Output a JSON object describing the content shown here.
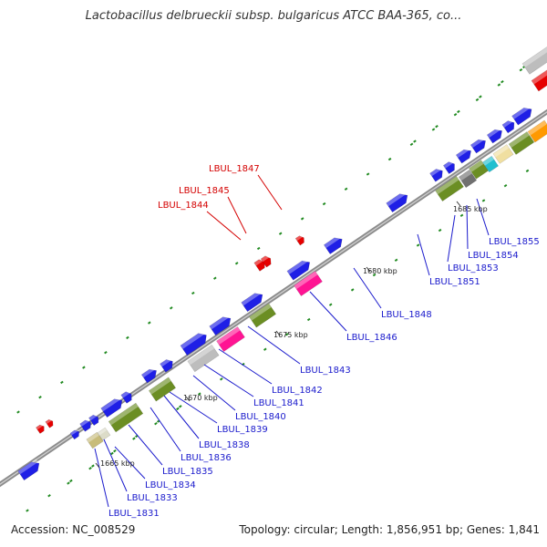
{
  "title": "Lactobacillus delbrueckii subsp. bulgaricus ATCC BAA-365, co...",
  "footer": {
    "accession": "Accession: NC_008529",
    "summary": "Topology: circular; Length: 1,856,951 bp; Genes: 1,841"
  },
  "colors": {
    "backbone": "#8c8c8c",
    "cds": "#1f1fe6",
    "trna": "#e60000",
    "label_blue": "#1a1acc",
    "label_red": "#d40000",
    "dotted": "#228b22"
  },
  "tick_labels": [
    "1665 kbp",
    "1670 kbp",
    "1675 kbp",
    "1680 kbp",
    "1685 kbp"
  ],
  "gene_labels": [
    {
      "name": "LBUL_1831",
      "color": "blue"
    },
    {
      "name": "LBUL_1833",
      "color": "blue"
    },
    {
      "name": "LBUL_1834",
      "color": "blue"
    },
    {
      "name": "LBUL_1835",
      "color": "blue"
    },
    {
      "name": "LBUL_1836",
      "color": "blue"
    },
    {
      "name": "LBUL_1838",
      "color": "blue"
    },
    {
      "name": "LBUL_1839",
      "color": "blue"
    },
    {
      "name": "LBUL_1840",
      "color": "blue"
    },
    {
      "name": "LBUL_1841",
      "color": "blue"
    },
    {
      "name": "LBUL_1842",
      "color": "blue"
    },
    {
      "name": "LBUL_1843",
      "color": "blue"
    },
    {
      "name": "LBUL_1846",
      "color": "blue"
    },
    {
      "name": "LBUL_1848",
      "color": "blue"
    },
    {
      "name": "LBUL_1851",
      "color": "blue"
    },
    {
      "name": "LBUL_1853",
      "color": "blue"
    },
    {
      "name": "LBUL_1854",
      "color": "blue"
    },
    {
      "name": "LBUL_1855",
      "color": "blue"
    },
    {
      "name": "LBUL_1844",
      "color": "red"
    },
    {
      "name": "LBUL_1845",
      "color": "red"
    },
    {
      "name": "LBUL_1847",
      "color": "red"
    }
  ]
}
